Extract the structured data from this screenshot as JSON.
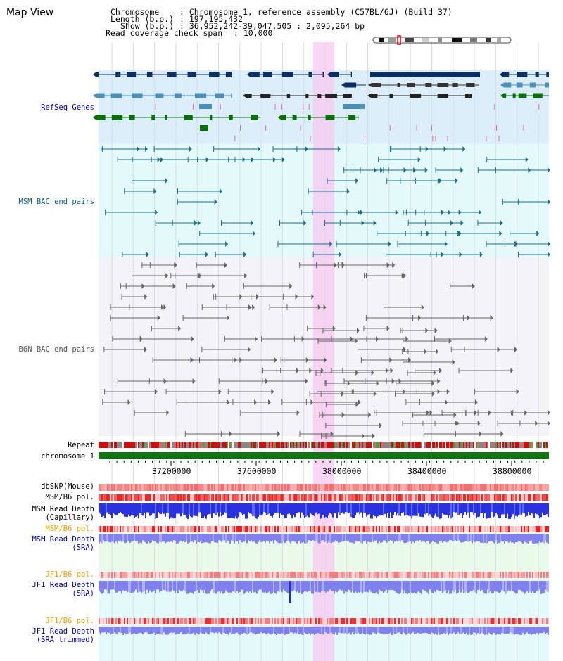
{
  "header": {
    "title": "Map View",
    "chromosome_label": "Chromosome",
    "chromosome_value": ": Chromosome 1, reference assembly (C57BL/6J) (Build 37)",
    "length_label": "Length (b.p.)",
    "length_value": ": 197,195,432",
    "show_label": "Show (b.p.)",
    "show_value": ": 36,952,242-39,047,505 : 2,095,264 bp",
    "span_label": "Read coverage check span",
    "span_value": ": 10,000"
  },
  "tracks": {
    "refseq": "RefSeq Genes",
    "msm_bac": "MSM BAC end pairs",
    "b6n_bac": "B6N BAC end pairs",
    "repeat": "Repeat",
    "chromosome": "chromosome 1",
    "dbsnp": "dbSNP(Mouse)",
    "msm_b6_pol_1": "MSM/B6 pol.",
    "msm_depth_cap_1": "MSM Read Depth",
    "msm_depth_cap_2": "(Capillary)",
    "msm_b6_pol_2": "MSM/B6 pol.",
    "msm_depth_sra_1": "MSM Read Depth",
    "msm_depth_sra_2": "(SRA)",
    "jf1_b6_pol_1": "JF1/B6 pol.",
    "jf1_depth_sra_1": "JF1 Read Depth",
    "jf1_depth_sra_2": "(SRA)",
    "jf1_b6_pol_2": "JF1/B6 pol.",
    "jf1_depth_trim_1": "JF1 Read Depth",
    "jf1_depth_trim_2": "(SRA trimmed)"
  },
  "axis": {
    "ticks": [
      "37200000",
      "37600000",
      "38000000",
      "38400000",
      "38800000"
    ]
  },
  "colors": {
    "refseq_bg": "#dceefa",
    "msm_bg": "#e4fafa",
    "b6n_bg": "#f4f4f8",
    "highlight": "#f7c8ef",
    "gene_dark": "#0b2f5e",
    "gene_mid": "#4a90b8",
    "gene_green": "#0b6e0b",
    "msm_line": "#1c6f8a",
    "b6n_line": "#666666",
    "chromosome": "#127312",
    "depth_blue": "#2a32e0",
    "depth_light": "#8080ee"
  }
}
